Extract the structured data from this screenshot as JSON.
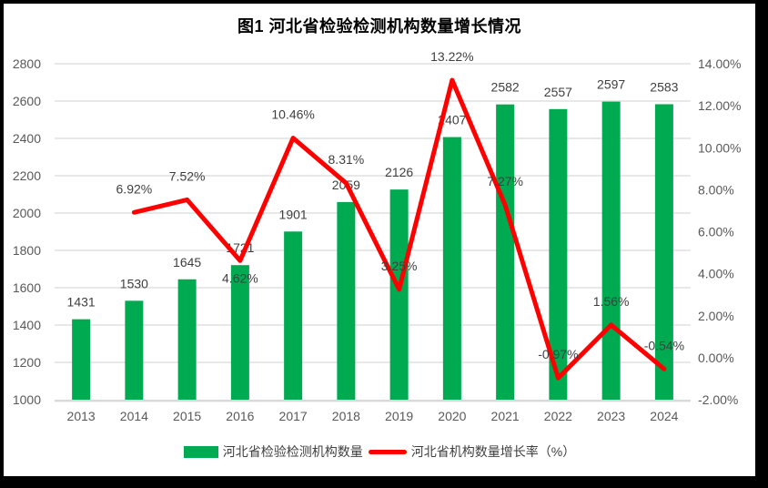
{
  "chart_data": {
    "type": "combo-bar-line",
    "title": "图1  河北省检验检测机构数量增长情况",
    "categories": [
      "2013",
      "2014",
      "2015",
      "2016",
      "2017",
      "2018",
      "2019",
      "2020",
      "2021",
      "2022",
      "2023",
      "2024"
    ],
    "series": [
      {
        "name": "河北省检验检测机构数量",
        "type": "bar",
        "axis": "left",
        "color": "#00AA50",
        "values": [
          1431,
          1530,
          1645,
          1721,
          1901,
          2059,
          2126,
          2407,
          2582,
          2557,
          2597,
          2583
        ]
      },
      {
        "name": "河北省机构数量增长率（%）",
        "type": "line",
        "axis": "right",
        "color": "#FF0000",
        "values": [
          null,
          6.92,
          7.52,
          4.62,
          10.46,
          8.31,
          3.25,
          13.22,
          7.27,
          -0.97,
          1.56,
          -0.54
        ],
        "labels_below_indices": [
          3
        ]
      }
    ],
    "left_axis": {
      "min": 1000,
      "max": 2800,
      "step": 200,
      "ticks": [
        "2800",
        "2600",
        "2400",
        "2200",
        "2000",
        "1800",
        "1600",
        "1400",
        "1200",
        "1000"
      ]
    },
    "right_axis": {
      "min": -2,
      "max": 14,
      "step": 2,
      "ticks": [
        "14.00%",
        "12.00%",
        "10.00%",
        "8.00%",
        "6.00%",
        "4.00%",
        "2.00%",
        "0.00%",
        "-2.00%"
      ]
    },
    "grid": true,
    "legend_position": "bottom"
  },
  "colors": {
    "bar": "#00AA50",
    "line": "#FF0000",
    "grid": "#D9D9D9",
    "axis_line": "#D9D9D9",
    "tick_text": "#595959",
    "data_label_text": "#3F3F3F",
    "title_text": "#000000",
    "frame": "#000000",
    "background": "#FFFFFF"
  }
}
